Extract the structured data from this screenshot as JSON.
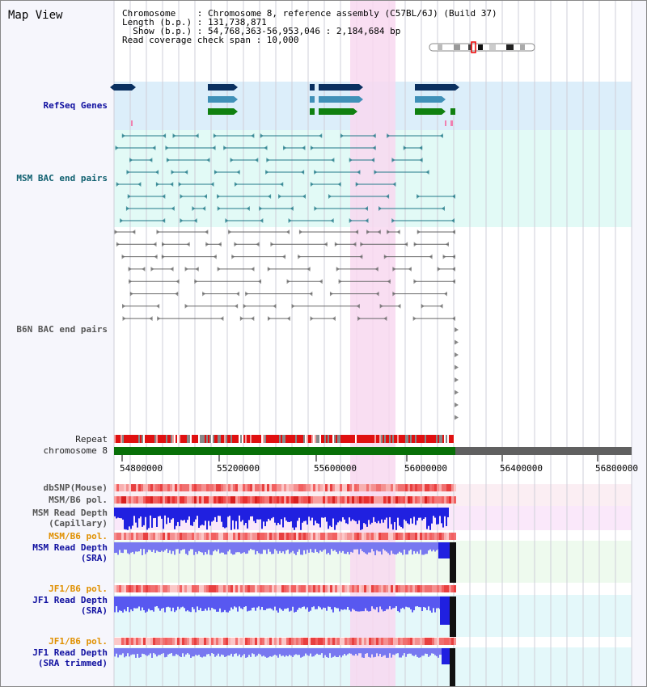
{
  "title": "Map View",
  "info": {
    "l1": "Chromosome    : Chromosome 8, reference assembly (C57BL/6J) (Build 37)",
    "l2": "Length (b.p.) : 131,738,871",
    "l3": "  Show (b.p.) : 54,768,363-56,953,046 : 2,184,684 bp",
    "l4": "Read coverage check span : 10,000"
  },
  "tracks": {
    "refseq": "RefSeq Genes",
    "msm_bac": "MSM BAC end pairs",
    "b6n_bac": "B6N BAC end pairs",
    "repeat": "Repeat",
    "chromosome": "chromosome 8",
    "dbsnp": "dbSNP(Mouse)",
    "msm_b6_pol": "MSM/B6 pol.",
    "msm_depth_cap_1": "MSM Read Depth",
    "msm_depth_cap_2": "(Capillary)",
    "msm_b6_pol_2": "MSM/B6 pol.",
    "msm_depth_sra_1": "MSM Read Depth",
    "msm_depth_sra_2": "(SRA)",
    "jf1_b6_pol": "JF1/B6 pol.",
    "jf1_depth_sra_1": "JF1 Read Depth",
    "jf1_depth_sra_2": "(SRA)",
    "jf1_b6_pol_2": "JF1/B6 pol.",
    "jf1_trim_1": "JF1 Read Depth",
    "jf1_trim_2": "(SRA trimmed)"
  },
  "axis": {
    "ticks": [
      "54800000",
      "55200000",
      "55600000",
      "56000000",
      "56400000",
      "56800000"
    ]
  },
  "colors": {
    "gene_dark": "#0a3060",
    "gene_mid": "#4090b8",
    "gene_green": "#108010",
    "chrom_green": "#087008",
    "chrom_gray": "#606060",
    "highlight": "#f8d8f0",
    "depth_blue": "#2020e0",
    "depth_light": "#7878f0"
  }
}
